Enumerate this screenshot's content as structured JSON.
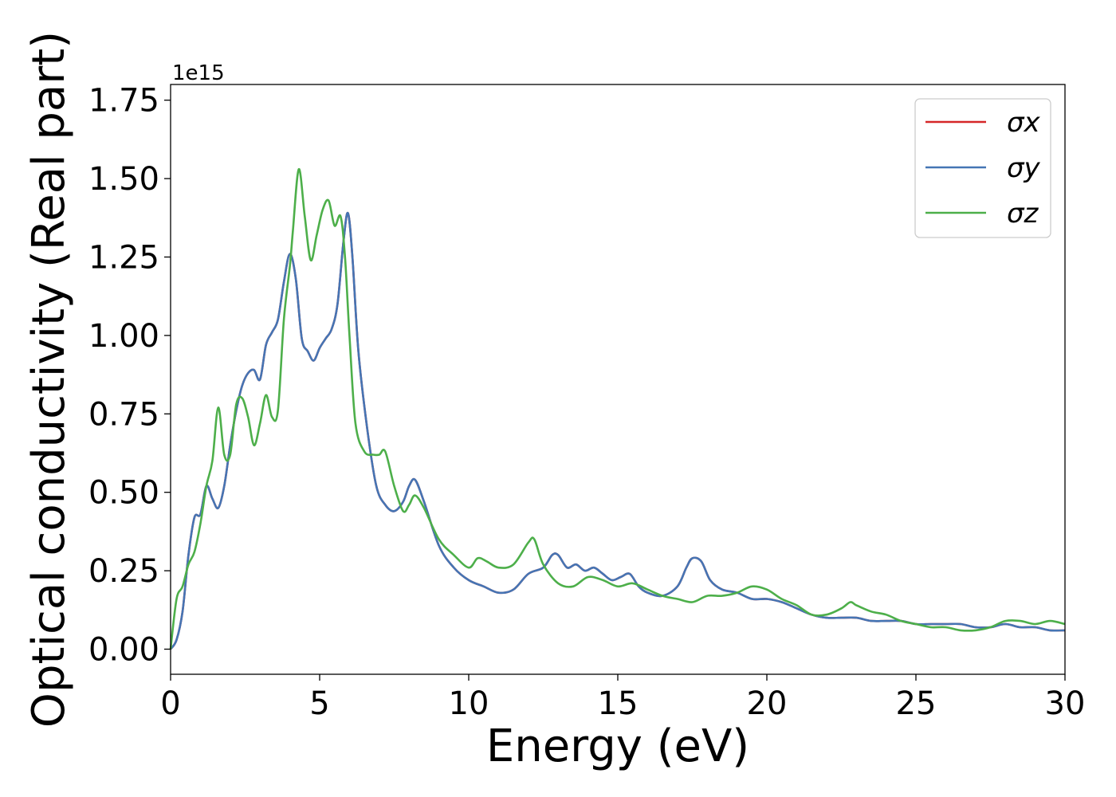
{
  "chart_data": {
    "type": "line",
    "title": "",
    "xlabel": "Energy (eV)",
    "ylabel": "Optical conductivity (Real part)",
    "y_offset_text": "1e15",
    "xlim": [
      0,
      30
    ],
    "ylim": [
      -0.08,
      1.8
    ],
    "x_ticks": [
      0,
      5,
      10,
      15,
      20,
      25,
      30
    ],
    "x_tick_labels": [
      "0",
      "5",
      "10",
      "15",
      "20",
      "25",
      "30"
    ],
    "y_ticks": [
      0.0,
      0.25,
      0.5,
      0.75,
      1.0,
      1.25,
      1.5,
      1.75
    ],
    "y_tick_labels": [
      "0.00",
      "0.25",
      "0.50",
      "0.75",
      "1.00",
      "1.25",
      "1.50",
      "1.75"
    ],
    "grid": false,
    "legend": "top-right",
    "series": [
      {
        "name": "σx",
        "color": "#d62728",
        "x": [
          0,
          0.2,
          0.4,
          0.6,
          0.8,
          1.0,
          1.2,
          1.4,
          1.6,
          1.8,
          2.0,
          2.2,
          2.4,
          2.6,
          2.8,
          3.0,
          3.2,
          3.4,
          3.6,
          3.8,
          4.0,
          4.2,
          4.4,
          4.6,
          4.8,
          5.0,
          5.2,
          5.4,
          5.6,
          5.8,
          5.95,
          6.1,
          6.3,
          6.6,
          6.9,
          7.2,
          7.5,
          7.8,
          8.0,
          8.2,
          8.5,
          9.0,
          9.5,
          10.0,
          10.5,
          11.0,
          11.5,
          12.0,
          12.5,
          12.8,
          13.0,
          13.3,
          13.6,
          13.9,
          14.2,
          14.5,
          14.8,
          15.1,
          15.4,
          15.7,
          16.0,
          16.5,
          17.0,
          17.3,
          17.5,
          17.8,
          18.1,
          18.5,
          19.0,
          19.5,
          20.0,
          20.5,
          21.0,
          21.5,
          22.0,
          22.5,
          23.0,
          23.5,
          24.0,
          24.5,
          25.0,
          25.5,
          26.0,
          26.5,
          27.0,
          27.5,
          28.0,
          28.5,
          29.0,
          29.5,
          30.0
        ],
        "values": [
          0.0,
          0.03,
          0.12,
          0.3,
          0.42,
          0.43,
          0.52,
          0.48,
          0.45,
          0.52,
          0.65,
          0.76,
          0.84,
          0.88,
          0.89,
          0.86,
          0.97,
          1.01,
          1.05,
          1.17,
          1.26,
          1.18,
          0.99,
          0.95,
          0.92,
          0.96,
          0.99,
          1.02,
          1.1,
          1.3,
          1.39,
          1.25,
          0.95,
          0.7,
          0.52,
          0.46,
          0.44,
          0.47,
          0.52,
          0.54,
          0.47,
          0.33,
          0.26,
          0.22,
          0.2,
          0.18,
          0.19,
          0.24,
          0.26,
          0.3,
          0.3,
          0.26,
          0.27,
          0.25,
          0.26,
          0.24,
          0.22,
          0.23,
          0.24,
          0.2,
          0.18,
          0.17,
          0.2,
          0.26,
          0.29,
          0.28,
          0.22,
          0.19,
          0.18,
          0.16,
          0.16,
          0.15,
          0.13,
          0.11,
          0.1,
          0.1,
          0.1,
          0.09,
          0.09,
          0.09,
          0.08,
          0.08,
          0.08,
          0.08,
          0.07,
          0.07,
          0.08,
          0.07,
          0.07,
          0.06,
          0.06
        ]
      },
      {
        "name": "σy",
        "color": "#4575b4",
        "x": [
          0,
          0.2,
          0.4,
          0.6,
          0.8,
          1.0,
          1.2,
          1.4,
          1.6,
          1.8,
          2.0,
          2.2,
          2.4,
          2.6,
          2.8,
          3.0,
          3.2,
          3.4,
          3.6,
          3.8,
          4.0,
          4.2,
          4.4,
          4.6,
          4.8,
          5.0,
          5.2,
          5.4,
          5.6,
          5.8,
          5.95,
          6.1,
          6.3,
          6.6,
          6.9,
          7.2,
          7.5,
          7.8,
          8.0,
          8.2,
          8.5,
          9.0,
          9.5,
          10.0,
          10.5,
          11.0,
          11.5,
          12.0,
          12.5,
          12.8,
          13.0,
          13.3,
          13.6,
          13.9,
          14.2,
          14.5,
          14.8,
          15.1,
          15.4,
          15.7,
          16.0,
          16.5,
          17.0,
          17.3,
          17.5,
          17.8,
          18.1,
          18.5,
          19.0,
          19.5,
          20.0,
          20.5,
          21.0,
          21.5,
          22.0,
          22.5,
          23.0,
          23.5,
          24.0,
          24.5,
          25.0,
          25.5,
          26.0,
          26.5,
          27.0,
          27.5,
          28.0,
          28.5,
          29.0,
          29.5,
          30.0
        ],
        "values": [
          0.0,
          0.03,
          0.12,
          0.3,
          0.42,
          0.43,
          0.52,
          0.48,
          0.45,
          0.52,
          0.65,
          0.76,
          0.84,
          0.88,
          0.89,
          0.86,
          0.97,
          1.01,
          1.05,
          1.17,
          1.26,
          1.18,
          0.99,
          0.95,
          0.92,
          0.96,
          0.99,
          1.02,
          1.1,
          1.3,
          1.39,
          1.25,
          0.95,
          0.7,
          0.52,
          0.46,
          0.44,
          0.47,
          0.52,
          0.54,
          0.47,
          0.33,
          0.26,
          0.22,
          0.2,
          0.18,
          0.19,
          0.24,
          0.26,
          0.3,
          0.3,
          0.26,
          0.27,
          0.25,
          0.26,
          0.24,
          0.22,
          0.23,
          0.24,
          0.2,
          0.18,
          0.17,
          0.2,
          0.26,
          0.29,
          0.28,
          0.22,
          0.19,
          0.18,
          0.16,
          0.16,
          0.15,
          0.13,
          0.11,
          0.1,
          0.1,
          0.1,
          0.09,
          0.09,
          0.09,
          0.08,
          0.08,
          0.08,
          0.08,
          0.07,
          0.07,
          0.08,
          0.07,
          0.07,
          0.06,
          0.06
        ]
      },
      {
        "name": "σz",
        "color": "#4daf4a",
        "x": [
          0,
          0.2,
          0.4,
          0.6,
          0.8,
          1.0,
          1.2,
          1.4,
          1.6,
          1.8,
          2.0,
          2.2,
          2.4,
          2.6,
          2.8,
          3.0,
          3.2,
          3.4,
          3.6,
          3.8,
          4.0,
          4.1,
          4.3,
          4.5,
          4.7,
          4.9,
          5.1,
          5.3,
          5.5,
          5.7,
          5.85,
          6.0,
          6.2,
          6.5,
          6.8,
          7.0,
          7.2,
          7.5,
          7.8,
          8.0,
          8.2,
          8.5,
          9.0,
          9.5,
          10.0,
          10.3,
          10.6,
          11.0,
          11.5,
          12.0,
          12.2,
          12.5,
          13.0,
          13.5,
          14.0,
          14.5,
          15.0,
          15.5,
          16.0,
          16.5,
          17.0,
          17.5,
          18.0,
          18.5,
          19.0,
          19.5,
          20.0,
          20.5,
          21.0,
          21.5,
          22.0,
          22.5,
          22.8,
          23.0,
          23.5,
          24.0,
          24.5,
          25.0,
          25.5,
          26.0,
          26.5,
          27.0,
          27.5,
          28.0,
          28.5,
          29.0,
          29.5,
          30.0
        ],
        "values": [
          0.0,
          0.16,
          0.2,
          0.27,
          0.31,
          0.4,
          0.52,
          0.6,
          0.77,
          0.62,
          0.62,
          0.78,
          0.8,
          0.74,
          0.65,
          0.72,
          0.81,
          0.74,
          0.76,
          1.05,
          1.22,
          1.33,
          1.53,
          1.38,
          1.24,
          1.32,
          1.4,
          1.43,
          1.35,
          1.38,
          1.25,
          1.0,
          0.72,
          0.63,
          0.62,
          0.62,
          0.63,
          0.52,
          0.44,
          0.46,
          0.49,
          0.45,
          0.35,
          0.3,
          0.26,
          0.29,
          0.28,
          0.26,
          0.27,
          0.34,
          0.35,
          0.27,
          0.21,
          0.2,
          0.23,
          0.22,
          0.2,
          0.21,
          0.19,
          0.17,
          0.16,
          0.15,
          0.17,
          0.17,
          0.18,
          0.2,
          0.19,
          0.16,
          0.14,
          0.11,
          0.11,
          0.13,
          0.15,
          0.14,
          0.12,
          0.11,
          0.09,
          0.08,
          0.07,
          0.07,
          0.06,
          0.06,
          0.07,
          0.09,
          0.09,
          0.08,
          0.09,
          0.08
        ]
      }
    ]
  }
}
